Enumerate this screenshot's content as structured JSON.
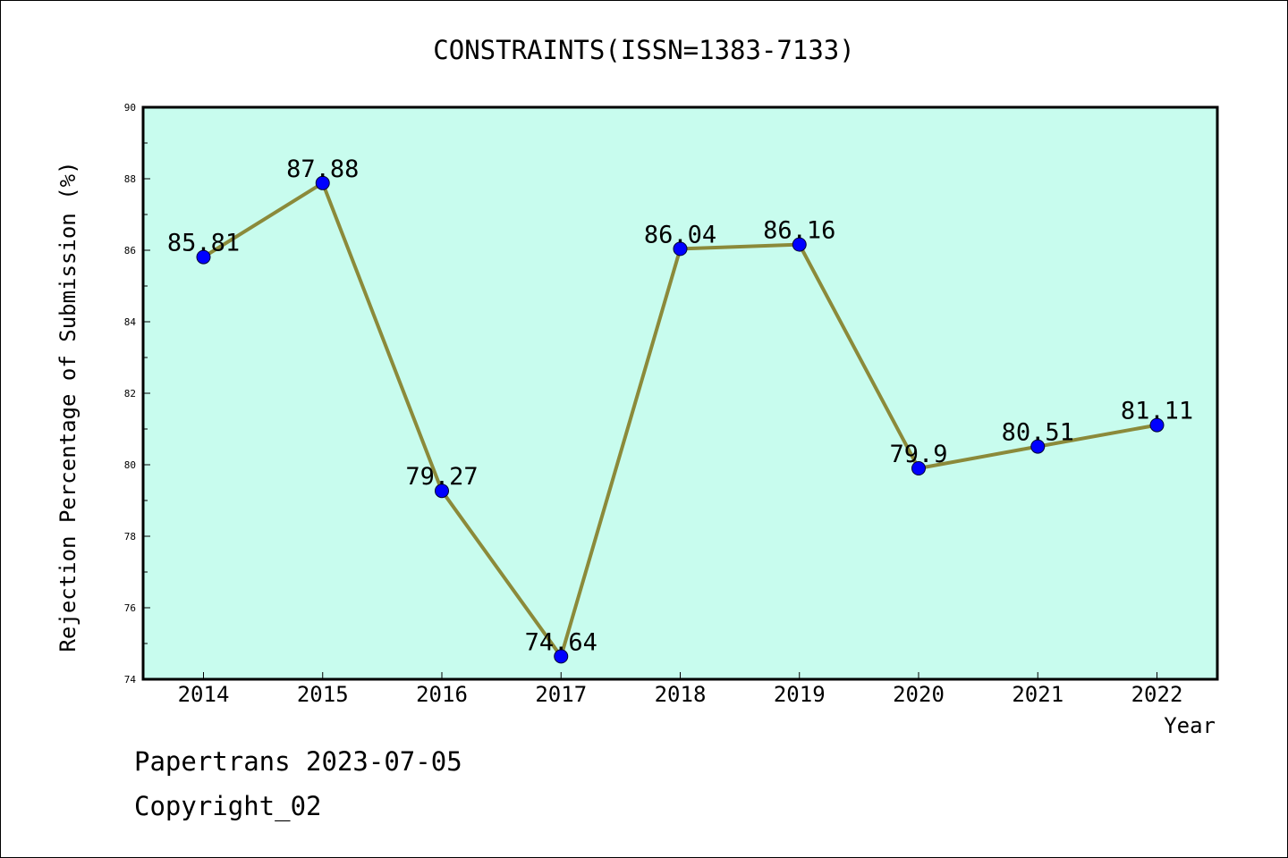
{
  "chart_data": {
    "type": "line",
    "title": "CONSTRAINTS(ISSN=1383-7133)",
    "xlabel": "Year",
    "ylabel": "Rejection Percentage of Submission (%)",
    "categories": [
      "2014",
      "2015",
      "2016",
      "2017",
      "2018",
      "2019",
      "2020",
      "2021",
      "2022"
    ],
    "series": [
      {
        "values": [
          85.81,
          87.88,
          79.27,
          74.64,
          86.04,
          86.16,
          79.9,
          80.51,
          81.11
        ],
        "labels": [
          "85.81",
          "87.88",
          "79.27",
          "74.64",
          "86.04",
          "86.16",
          "79.9",
          "80.51",
          "81.11"
        ],
        "line_color": "#8b8a3a",
        "marker_color": "#0000ff"
      }
    ],
    "ylim": [
      74,
      90
    ],
    "yticks": [
      "74",
      "76",
      "78",
      "80",
      "82",
      "84",
      "86",
      "88",
      "90"
    ],
    "plot_background": "#c8fcee",
    "grid": false,
    "legend": "none"
  },
  "footer": {
    "line1": "Papertrans 2023-07-05",
    "line2": "Copyright_02"
  }
}
